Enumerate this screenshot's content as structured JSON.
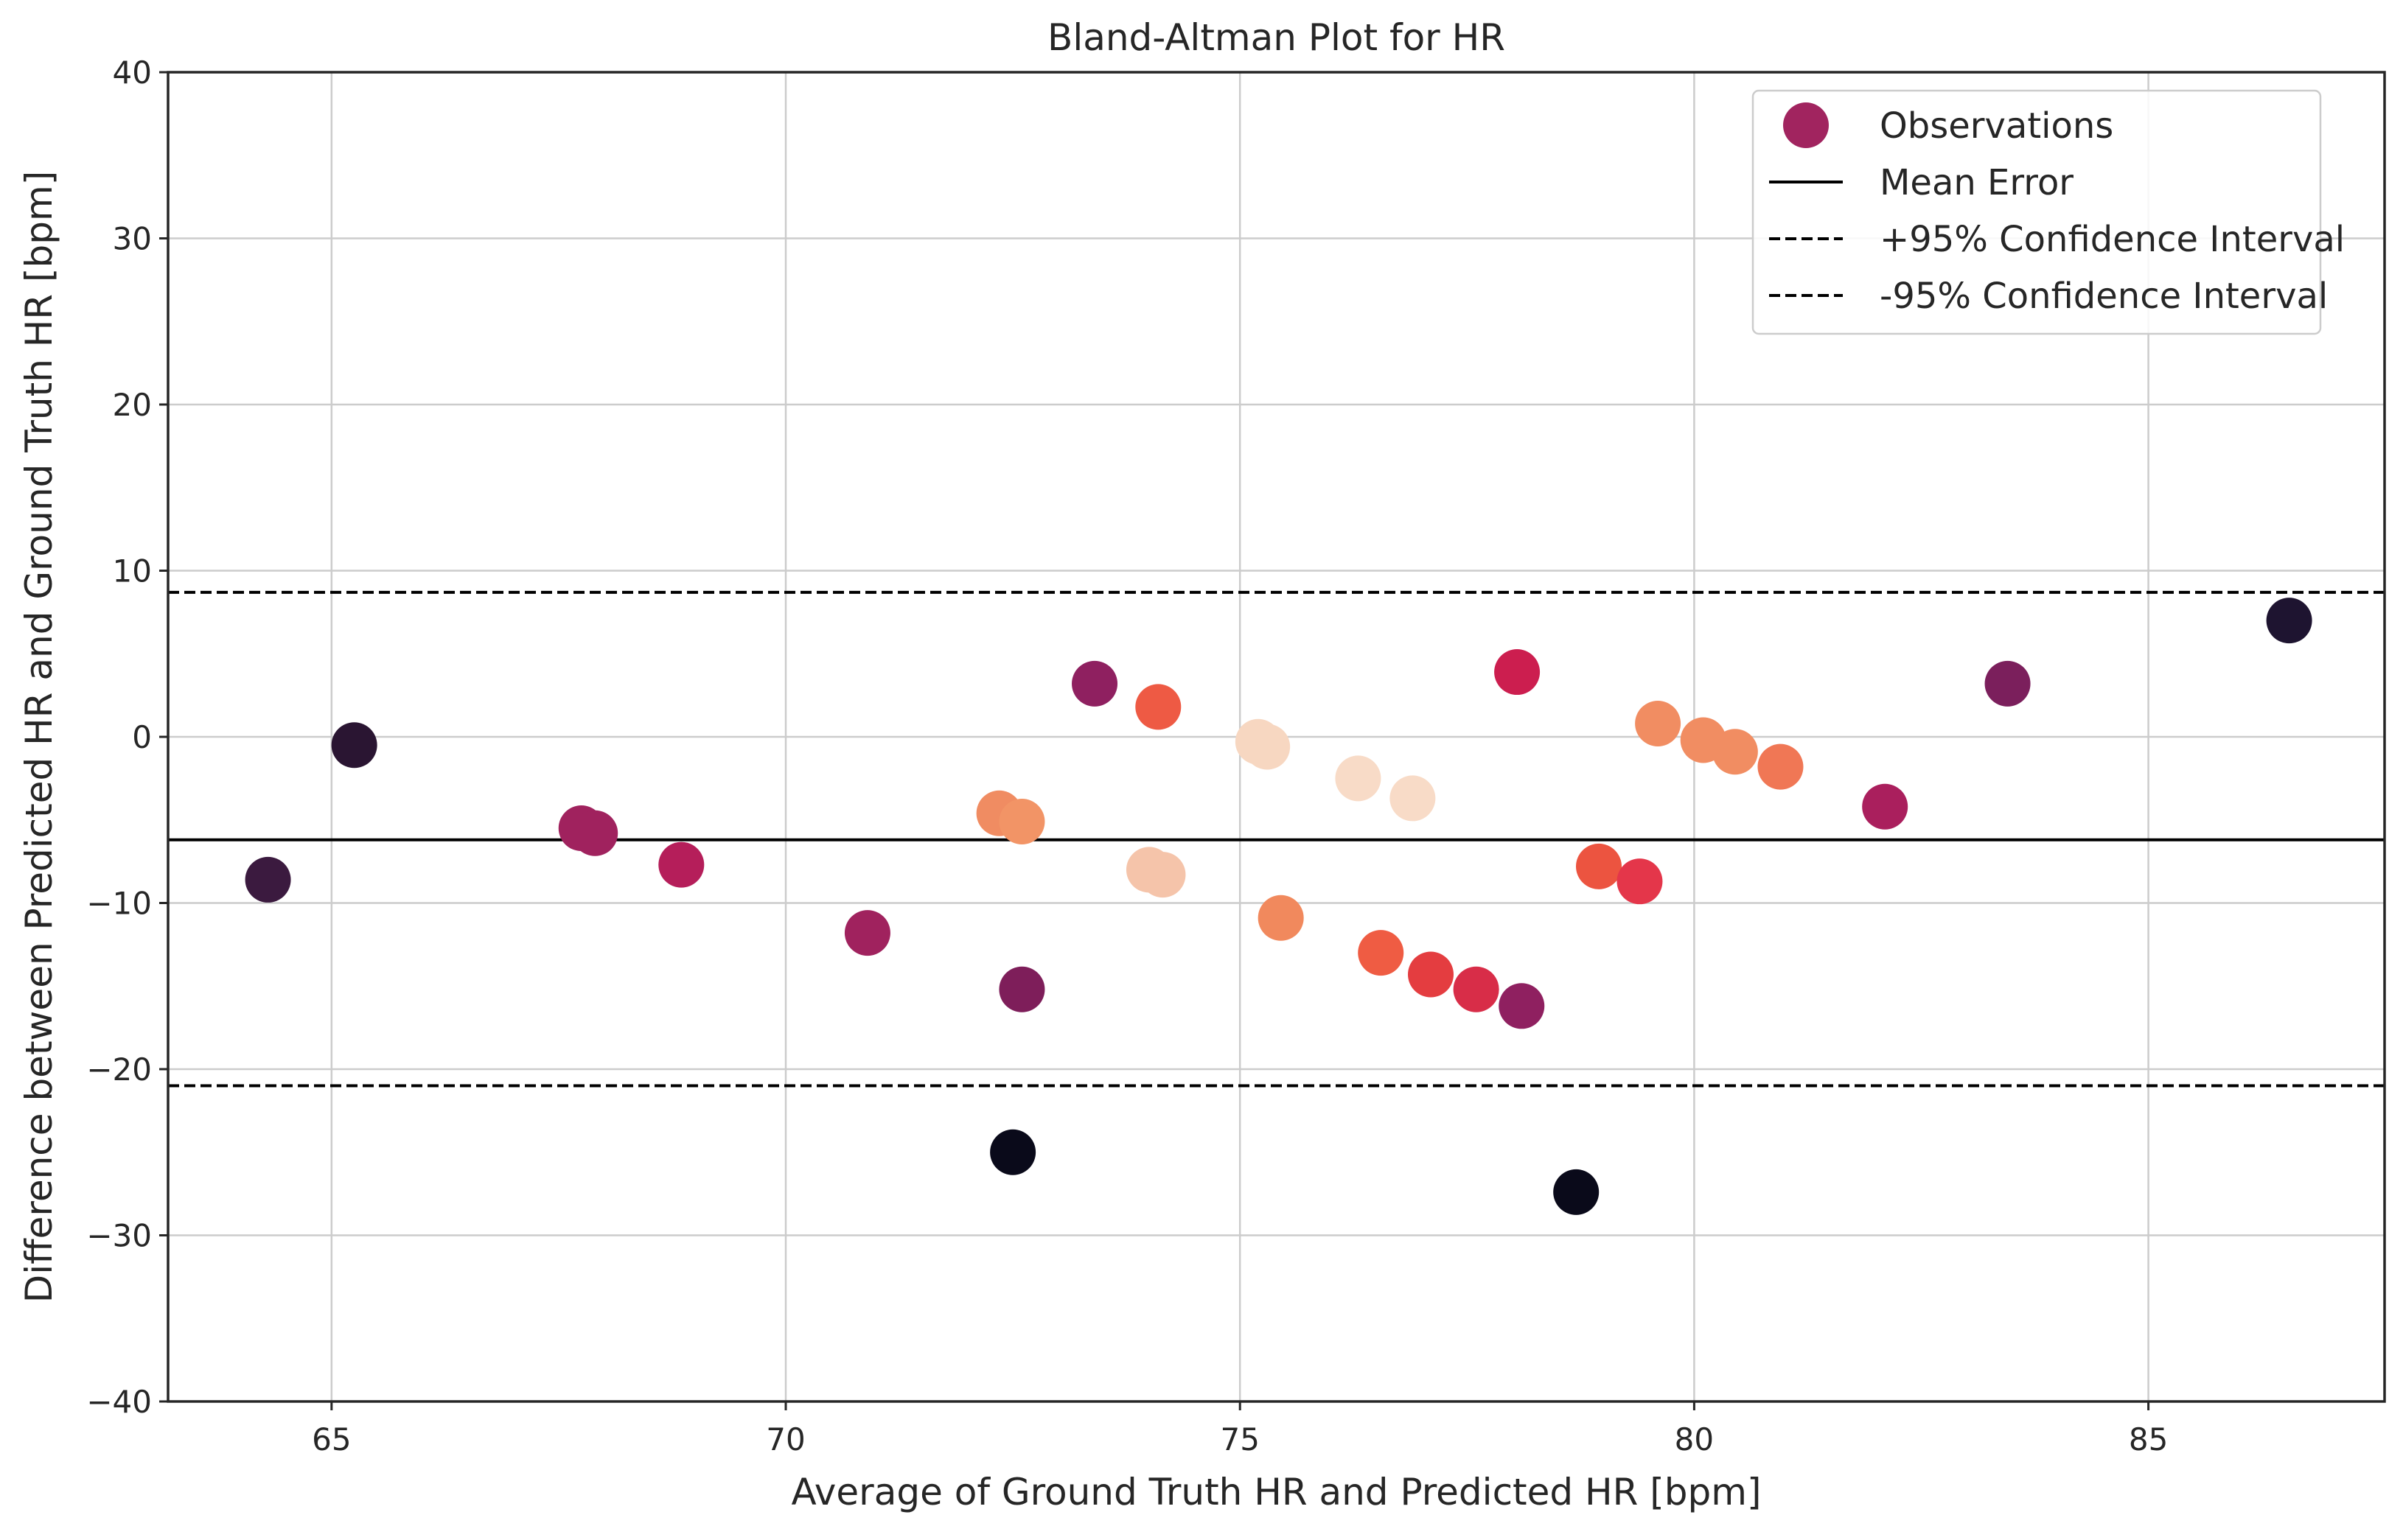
{
  "chart_data": {
    "type": "scatter",
    "title": "Bland-Altman Plot for HR",
    "xlabel": "Average of Ground Truth HR and Predicted HR [bpm]",
    "ylabel": "Difference between Predicted HR and Ground Truth HR [bpm]",
    "xlim": [
      63.2,
      87.6
    ],
    "ylim": [
      -40,
      40
    ],
    "xticks": [
      65,
      70,
      75,
      80,
      85
    ],
    "yticks": [
      -40,
      -30,
      -20,
      -10,
      0,
      10,
      20,
      30,
      40
    ],
    "grid": true,
    "legend_position": "top-right",
    "mean_error": -6.2,
    "upper_ci": 8.7,
    "lower_ci": -21.0,
    "legend": [
      {
        "label": "Observations",
        "kind": "marker",
        "color": "#a1245f"
      },
      {
        "label": "Mean Error",
        "kind": "solid"
      },
      {
        "label": "+95% Confidence Interval",
        "kind": "dashed"
      },
      {
        "label": "-95% Confidence Interval",
        "kind": "dashed"
      }
    ],
    "points": [
      {
        "x": 64.3,
        "y": -8.6,
        "color": "#3b1a3f"
      },
      {
        "x": 65.25,
        "y": -0.5,
        "color": "#2a1532"
      },
      {
        "x": 67.75,
        "y": -5.5,
        "color": "#a0225e"
      },
      {
        "x": 67.9,
        "y": -5.8,
        "color": "#a0225e"
      },
      {
        "x": 68.85,
        "y": -7.7,
        "color": "#b51e5a"
      },
      {
        "x": 70.9,
        "y": -11.8,
        "color": "#a0225e"
      },
      {
        "x": 72.35,
        "y": -4.6,
        "color": "#f08c62"
      },
      {
        "x": 72.6,
        "y": -5.1,
        "color": "#f29466"
      },
      {
        "x": 72.5,
        "y": -25.0,
        "color": "#0a0a1a"
      },
      {
        "x": 72.6,
        "y": -15.2,
        "color": "#7e1e5a"
      },
      {
        "x": 73.4,
        "y": 3.2,
        "color": "#8f2060"
      },
      {
        "x": 74.0,
        "y": -8.0,
        "color": "#f5c4aa"
      },
      {
        "x": 74.15,
        "y": -8.3,
        "color": "#f5c4aa"
      },
      {
        "x": 74.1,
        "y": 1.8,
        "color": "#ee5a44"
      },
      {
        "x": 75.2,
        "y": -0.3,
        "color": "#f7d7c1"
      },
      {
        "x": 75.3,
        "y": -0.6,
        "color": "#f7d7c1"
      },
      {
        "x": 75.45,
        "y": -10.9,
        "color": "#f1895d"
      },
      {
        "x": 76.3,
        "y": -2.5,
        "color": "#f8dbc7"
      },
      {
        "x": 76.55,
        "y": -13.0,
        "color": "#ef5c43"
      },
      {
        "x": 76.9,
        "y": -3.7,
        "color": "#f8dbc7"
      },
      {
        "x": 77.1,
        "y": -14.3,
        "color": "#e43d40"
      },
      {
        "x": 77.6,
        "y": -15.2,
        "color": "#d82d48"
      },
      {
        "x": 78.05,
        "y": 3.9,
        "color": "#cc1e4f"
      },
      {
        "x": 78.1,
        "y": -16.2,
        "color": "#8f2060"
      },
      {
        "x": 78.7,
        "y": -27.4,
        "color": "#0a0a1a"
      },
      {
        "x": 78.95,
        "y": -7.8,
        "color": "#ec5440"
      },
      {
        "x": 79.4,
        "y": -8.7,
        "color": "#e4364a"
      },
      {
        "x": 79.6,
        "y": 0.8,
        "color": "#f18d62"
      },
      {
        "x": 80.1,
        "y": -0.2,
        "color": "#f18d62"
      },
      {
        "x": 80.45,
        "y": -0.9,
        "color": "#f18d62"
      },
      {
        "x": 80.95,
        "y": -1.8,
        "color": "#f07755"
      },
      {
        "x": 82.1,
        "y": -4.2,
        "color": "#aa1f5d"
      },
      {
        "x": 83.45,
        "y": 3.2,
        "color": "#7b1f5c"
      },
      {
        "x": 86.55,
        "y": 7.0,
        "color": "#1e1430"
      }
    ]
  }
}
